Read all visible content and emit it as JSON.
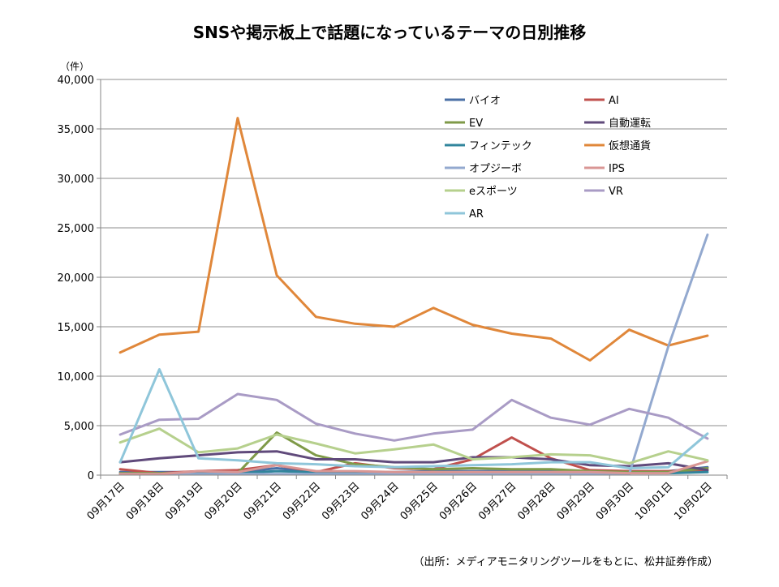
{
  "chart_data": {
    "type": "line",
    "title": "SNSや掲示板上で話題になっているテーマの日別推移",
    "y_unit": "（件）",
    "source": "（出所：メディアモニタリングツールをもとに、松井証券作成）",
    "ylim": [
      0,
      40000
    ],
    "y_ticks": [
      "0",
      "5,000",
      "10,000",
      "15,000",
      "20,000",
      "25,000",
      "30,000",
      "35,000",
      "40,000"
    ],
    "categories": [
      "09月17日",
      "09月18日",
      "09月19日",
      "09月20日",
      "09月21日",
      "09月22日",
      "09月23日",
      "09月24日",
      "09月25日",
      "09月26日",
      "09月27日",
      "09月28日",
      "09月29日",
      "09月30日",
      "10月01日",
      "10月02日"
    ],
    "grid": "horizontal",
    "legend_position": "top-right",
    "series": [
      {
        "name": "バイオ",
        "color": "#4a6fa5",
        "values": [
          300,
          300,
          300,
          300,
          700,
          300,
          300,
          300,
          400,
          400,
          400,
          400,
          400,
          300,
          400,
          800
        ]
      },
      {
        "name": "AI",
        "color": "#c0504d",
        "values": [
          600,
          200,
          400,
          500,
          1000,
          300,
          1200,
          700,
          600,
          1600,
          3800,
          1700,
          500,
          400,
          400,
          500
        ]
      },
      {
        "name": "EV",
        "color": "#7f9a48",
        "values": [
          200,
          200,
          200,
          200,
          4300,
          2000,
          1100,
          800,
          600,
          700,
          600,
          600,
          400,
          300,
          300,
          700
        ]
      },
      {
        "name": "自動運転",
        "color": "#604a7b",
        "values": [
          1300,
          1700,
          2000,
          2300,
          2400,
          1600,
          1600,
          1300,
          1300,
          1800,
          1800,
          1600,
          1000,
          900,
          1200,
          500
        ]
      },
      {
        "name": "フィンテック",
        "color": "#31859c",
        "values": [
          100,
          100,
          200,
          200,
          400,
          300,
          200,
          200,
          200,
          200,
          200,
          200,
          200,
          200,
          200,
          300
        ]
      },
      {
        "name": "仮想通貨",
        "color": "#e0873a",
        "values": [
          12400,
          14200,
          14500,
          36100,
          20200,
          16000,
          15300,
          15000,
          16900,
          15200,
          14300,
          13800,
          11600,
          14700,
          13100,
          14100
        ]
      },
      {
        "name": "オプジーボ",
        "color": "#93a9cf",
        "values": [
          100,
          100,
          100,
          100,
          100,
          100,
          100,
          100,
          100,
          100,
          100,
          100,
          100,
          100,
          13000,
          24300
        ]
      },
      {
        "name": "IPS",
        "color": "#d99694",
        "values": [
          100,
          100,
          400,
          300,
          1000,
          400,
          400,
          300,
          300,
          300,
          300,
          300,
          300,
          200,
          200,
          1400
        ]
      },
      {
        "name": "eスポーツ",
        "color": "#b6d08d",
        "values": [
          3300,
          4700,
          2300,
          2700,
          4100,
          3200,
          2200,
          2600,
          3100,
          1600,
          1800,
          2100,
          2000,
          1200,
          2400,
          1500
        ]
      },
      {
        "name": "VR",
        "color": "#a99bc5",
        "values": [
          4100,
          5600,
          5700,
          8200,
          7600,
          5200,
          4200,
          3500,
          4200,
          4600,
          7600,
          5800,
          5100,
          6700,
          5800,
          3700
        ]
      },
      {
        "name": "AR",
        "color": "#8fc6da",
        "values": [
          1300,
          10700,
          1700,
          1500,
          1200,
          1100,
          900,
          800,
          900,
          1000,
          1100,
          1300,
          1300,
          700,
          800,
          4200
        ]
      }
    ]
  }
}
